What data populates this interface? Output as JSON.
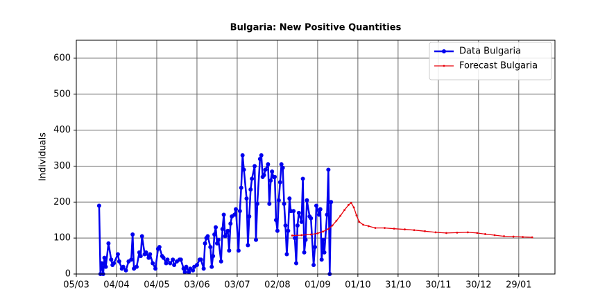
{
  "chart_data": {
    "type": "line",
    "title": "Bulgaria: New Positive Quantities",
    "y_label": "Individuals",
    "xlim": [
      "05/03",
      "25/02"
    ],
    "xticks": [
      "05/03",
      "04/04",
      "04/05",
      "03/06",
      "03/07",
      "02/08",
      "01/09",
      "01/10",
      "31/10",
      "30/11",
      "30/12",
      "29/01"
    ],
    "ylim": [
      0,
      650
    ],
    "yticks": [
      0,
      100,
      200,
      300,
      400,
      500,
      600
    ],
    "grid": true,
    "legend": "upper right",
    "series": [
      {
        "name": "Data Bulgaria",
        "color": "#0000ee",
        "x": [
          "22/03",
          "23/03",
          "24/03",
          "25/03",
          "26/03",
          "27/03",
          "29/03",
          "31/03",
          "01/04",
          "02/04",
          "05/04",
          "06/04",
          "08/04",
          "09/04",
          "11/04",
          "13/04",
          "15/04",
          "16/04",
          "17/04",
          "19/04",
          "21/04",
          "22/04",
          "23/04",
          "25/04",
          "26/04",
          "28/04",
          "29/04",
          "01/05",
          "03/05",
          "05/05",
          "06/05",
          "08/05",
          "09/05",
          "11/05",
          "12/05",
          "14/05",
          "16/05",
          "17/05",
          "19/05",
          "21/05",
          "22/05",
          "24/05",
          "25/05",
          "26/05",
          "28/05",
          "29/05",
          "31/05",
          "01/06",
          "03/06",
          "05/06",
          "06/06",
          "08/06",
          "09/06",
          "10/06",
          "11/06",
          "13/06",
          "14/06",
          "15/06",
          "16/06",
          "17/06",
          "18/06",
          "19/06",
          "21/06",
          "22/06",
          "23/06",
          "24/06",
          "26/06",
          "27/06",
          "28/06",
          "29/06",
          "01/07",
          "02/07",
          "04/07",
          "05/07",
          "06/07",
          "07/07",
          "08/07",
          "10/07",
          "11/07",
          "12/07",
          "13/07",
          "14/07",
          "16/07",
          "17/07",
          "18/07",
          "20/07",
          "21/07",
          "22/07",
          "23/07",
          "24/07",
          "26/07",
          "27/07",
          "28/07",
          "29/07",
          "30/07",
          "31/07",
          "01/08",
          "02/08",
          "03/08",
          "04/08",
          "05/08",
          "06/08",
          "07/08",
          "08/08",
          "09/08",
          "10/08",
          "11/08",
          "12/08",
          "14/08",
          "15/08",
          "16/08",
          "17/08",
          "18/08",
          "20/08",
          "21/08",
          "22/08",
          "23/08",
          "24/08",
          "26/08",
          "27/08",
          "29/08",
          "30/08",
          "31/08",
          "02/09",
          "03/09",
          "04/09",
          "05/09",
          "06/09",
          "08/09",
          "09/09",
          "10/09",
          "11/09"
        ],
        "values": [
          190,
          0,
          30,
          0,
          45,
          20,
          85,
          40,
          25,
          30,
          55,
          35,
          15,
          20,
          10,
          35,
          40,
          110,
          15,
          20,
          60,
          50,
          105,
          55,
          60,
          45,
          55,
          30,
          15,
          70,
          75,
          50,
          45,
          30,
          40,
          30,
          40,
          25,
          35,
          40,
          40,
          15,
          5,
          20,
          5,
          15,
          10,
          20,
          25,
          40,
          40,
          15,
          85,
          100,
          105,
          75,
          20,
          50,
          110,
          130,
          85,
          95,
          35,
          125,
          165,
          105,
          120,
          65,
          140,
          160,
          165,
          180,
          65,
          175,
          240,
          330,
          290,
          210,
          80,
          160,
          235,
          265,
          300,
          95,
          195,
          320,
          330,
          270,
          275,
          290,
          305,
          195,
          260,
          285,
          270,
          270,
          150,
          120,
          205,
          255,
          305,
          295,
          195,
          135,
          55,
          120,
          210,
          175,
          175,
          100,
          30,
          135,
          170,
          145,
          265,
          60,
          95,
          205,
          160,
          155,
          25,
          75,
          190,
          165,
          180,
          40,
          95,
          60,
          165,
          290,
          0,
          200
        ]
      },
      {
        "name": "Forecast Bulgaria",
        "color": "#e8000b",
        "x": [
          "13/08",
          "20/08",
          "27/08",
          "01/09",
          "05/09",
          "09/09",
          "12/09",
          "15/09",
          "18/09",
          "21/09",
          "24/09",
          "26/09",
          "28/09",
          "30/09",
          "02/10",
          "05/10",
          "09/10",
          "14/10",
          "21/10",
          "28/10",
          "05/11",
          "12/11",
          "20/11",
          "28/11",
          "06/12",
          "14/12",
          "22/12",
          "29/12",
          "04/01",
          "11/01",
          "18/01",
          "25/01",
          "01/02",
          "08/02"
        ],
        "values": [
          107,
          108,
          110,
          113,
          118,
          125,
          135,
          148,
          162,
          178,
          192,
          198,
          185,
          163,
          145,
          137,
          133,
          128,
          128,
          126,
          124,
          122,
          119,
          116,
          114,
          115,
          116,
          114,
          111,
          108,
          105,
          104,
          103,
          102
        ]
      }
    ]
  }
}
